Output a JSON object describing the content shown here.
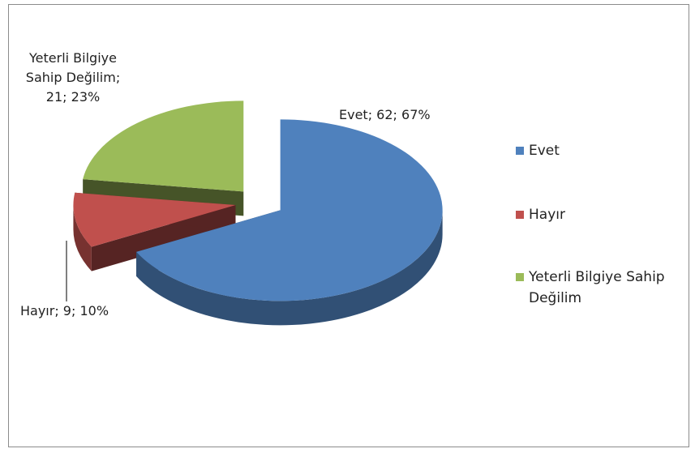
{
  "chart_data": {
    "type": "pie3d",
    "categories": [
      "Evet",
      "Hayır",
      "Yeterli Bilgiye Sahip Değilim"
    ],
    "values": [
      62,
      9,
      21
    ],
    "value_labels": [
      "Evet; 62; 67%",
      "Hayır; 9; 10%",
      "Yeterli Bilgiye Sahip Değilim; 21; 23%"
    ],
    "colors": [
      "#4f81bd",
      "#c0504d",
      "#9bbb59"
    ],
    "legend": "right"
  }
}
